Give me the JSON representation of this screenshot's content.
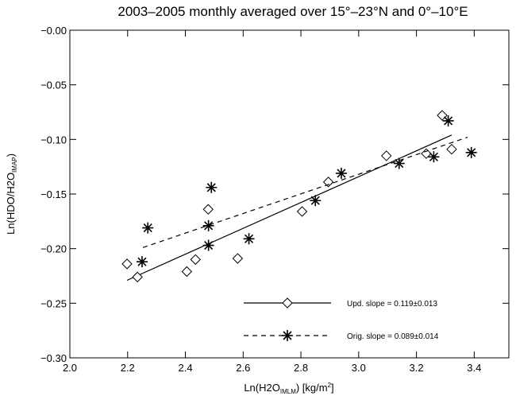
{
  "chart_data": {
    "type": "scatter",
    "title": "2003–2005 monthly averaged over 15°–23°N and 0°–10°E",
    "xlabel": [
      "Ln(H2O",
      "IMLM",
      ") [kg/m",
      "2",
      "]"
    ],
    "ylabel": [
      "Ln(HDO/H2O",
      "IMAP",
      ")"
    ],
    "xlim": [
      2.0,
      3.52
    ],
    "ylim": [
      -0.3,
      0.0
    ],
    "xticks": [
      {
        "value": 2.0,
        "label": "2.0"
      },
      {
        "value": 2.2,
        "label": "2.2"
      },
      {
        "value": 2.4,
        "label": "2.4"
      },
      {
        "value": 2.6,
        "label": "2.6"
      },
      {
        "value": 2.8,
        "label": "2.8"
      },
      {
        "value": 3.0,
        "label": "3.0"
      },
      {
        "value": 3.2,
        "label": "3.2"
      },
      {
        "value": 3.4,
        "label": "3.4"
      }
    ],
    "yticks": [
      {
        "value": -0.3,
        "label": "−0.30"
      },
      {
        "value": -0.25,
        "label": "−0.25"
      },
      {
        "value": -0.2,
        "label": "−0.20"
      },
      {
        "value": -0.15,
        "label": "−0.15"
      },
      {
        "value": -0.1,
        "label": "−0.10"
      },
      {
        "value": -0.05,
        "label": "−0.05"
      },
      {
        "value": 0.0,
        "label": "−0.00"
      }
    ],
    "legend": "lower right",
    "series": [
      {
        "name": "Upd. slope = 0.119±0.013",
        "color": "#000000",
        "marker": "diamond",
        "dashed": false,
        "x": [
          2.198,
          2.234,
          2.405,
          2.435,
          2.479,
          2.581,
          2.804,
          2.895,
          3.096,
          3.234,
          3.289,
          3.322
        ],
        "values": [
          -0.214,
          -0.226,
          -0.221,
          -0.21,
          -0.164,
          -0.209,
          -0.166,
          -0.139,
          -0.115,
          -0.113,
          -0.078,
          -0.109
        ],
        "fit": {
          "x": [
            2.198,
            3.322
          ],
          "values": [
            -0.229,
            -0.096
          ]
        }
      },
      {
        "name": "Orig. slope = 0.089±0.014",
        "color": "#000000",
        "marker": "star",
        "dashed": true,
        "x": [
          2.25,
          2.27,
          2.48,
          2.48,
          2.49,
          2.62,
          2.85,
          2.94,
          3.14,
          3.26,
          3.31,
          3.39
        ],
        "values": [
          -0.212,
          -0.181,
          -0.179,
          -0.197,
          -0.144,
          -0.191,
          -0.156,
          -0.131,
          -0.122,
          -0.116,
          -0.083,
          -0.112
        ],
        "fit": {
          "x": [
            2.253,
            3.377
          ],
          "values": [
            -0.199,
            -0.098
          ]
        }
      }
    ]
  }
}
